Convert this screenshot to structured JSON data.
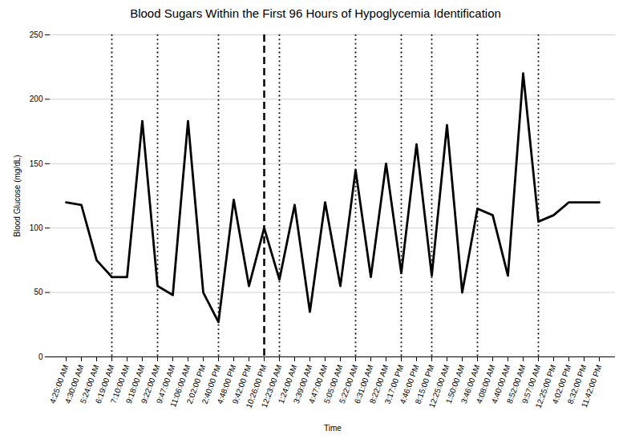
{
  "chart_data": {
    "type": "line",
    "title": "Blood Sugars Within the First 96 Hours of Hypoglycemia Identification",
    "xlabel": "Time",
    "ylabel": "Blood Glucose (mg/dL)",
    "categories": [
      "4:25:00 AM",
      "4:30:00 AM",
      "5:24:00 AM",
      "6:19:00 AM",
      "7:10:00 AM",
      "9:18:00 AM",
      "9:22:00 AM",
      "9:47:00 AM",
      "11:06:00 AM",
      "2:02:00 PM",
      "2:40:00 PM",
      "4:48:00 PM",
      "9:42:00 PM",
      "10:26:00 PM",
      "12:23:00 AM",
      "1:24:00 AM",
      "3:39:00 AM",
      "4:47:00 AM",
      "5:05:00 AM",
      "5:22:00 AM",
      "6:31:00 AM",
      "8:22:00 AM",
      "3:17:00 PM",
      "4:46:00 PM",
      "8:15:00 PM",
      "12:25:00 AM",
      "1:50:00 AM",
      "3:46:00 AM",
      "4:08:00 AM",
      "4:40:00 AM",
      "8:52:00 AM",
      "9:57:00 AM",
      "12:25:00 PM",
      "4:02:00 PM",
      "8:32:00 PM",
      "11:42:00 PM"
    ],
    "values": [
      120,
      118,
      75,
      62,
      62,
      183,
      55,
      48,
      183,
      50,
      27,
      122,
      55,
      100,
      60,
      118,
      35,
      120,
      55,
      145,
      62,
      150,
      65,
      165,
      63,
      180,
      50,
      115,
      110,
      63,
      220,
      105,
      110,
      120,
      120,
      120
    ],
    "color": "#000000",
    "vlines": [
      {
        "x": "6:19:00 AM",
        "line_style": "dotted"
      },
      {
        "x": "9:22:00 AM",
        "line_style": "dotted"
      },
      {
        "x": "2:40:00 PM",
        "line_style": "dotted"
      },
      {
        "x": "12:23:00 AM",
        "line_style": "dotted"
      },
      {
        "x": "5:22:00 AM",
        "line_style": "dotted"
      },
      {
        "x": "3:17:00 PM",
        "line_style": "dotted"
      },
      {
        "x": "8:15:00 PM",
        "line_style": "dotted"
      },
      {
        "x": "3:46:00 AM",
        "line_style": "dotted"
      },
      {
        "x": "9:57:00 AM",
        "line_style": "dotted"
      },
      {
        "x": "10:26:00 PM",
        "line_style": "dashed"
      }
    ],
    "ylim": [
      0,
      250
    ],
    "yticks": [
      0,
      50,
      100,
      150,
      200,
      250
    ],
    "grid": true
  }
}
